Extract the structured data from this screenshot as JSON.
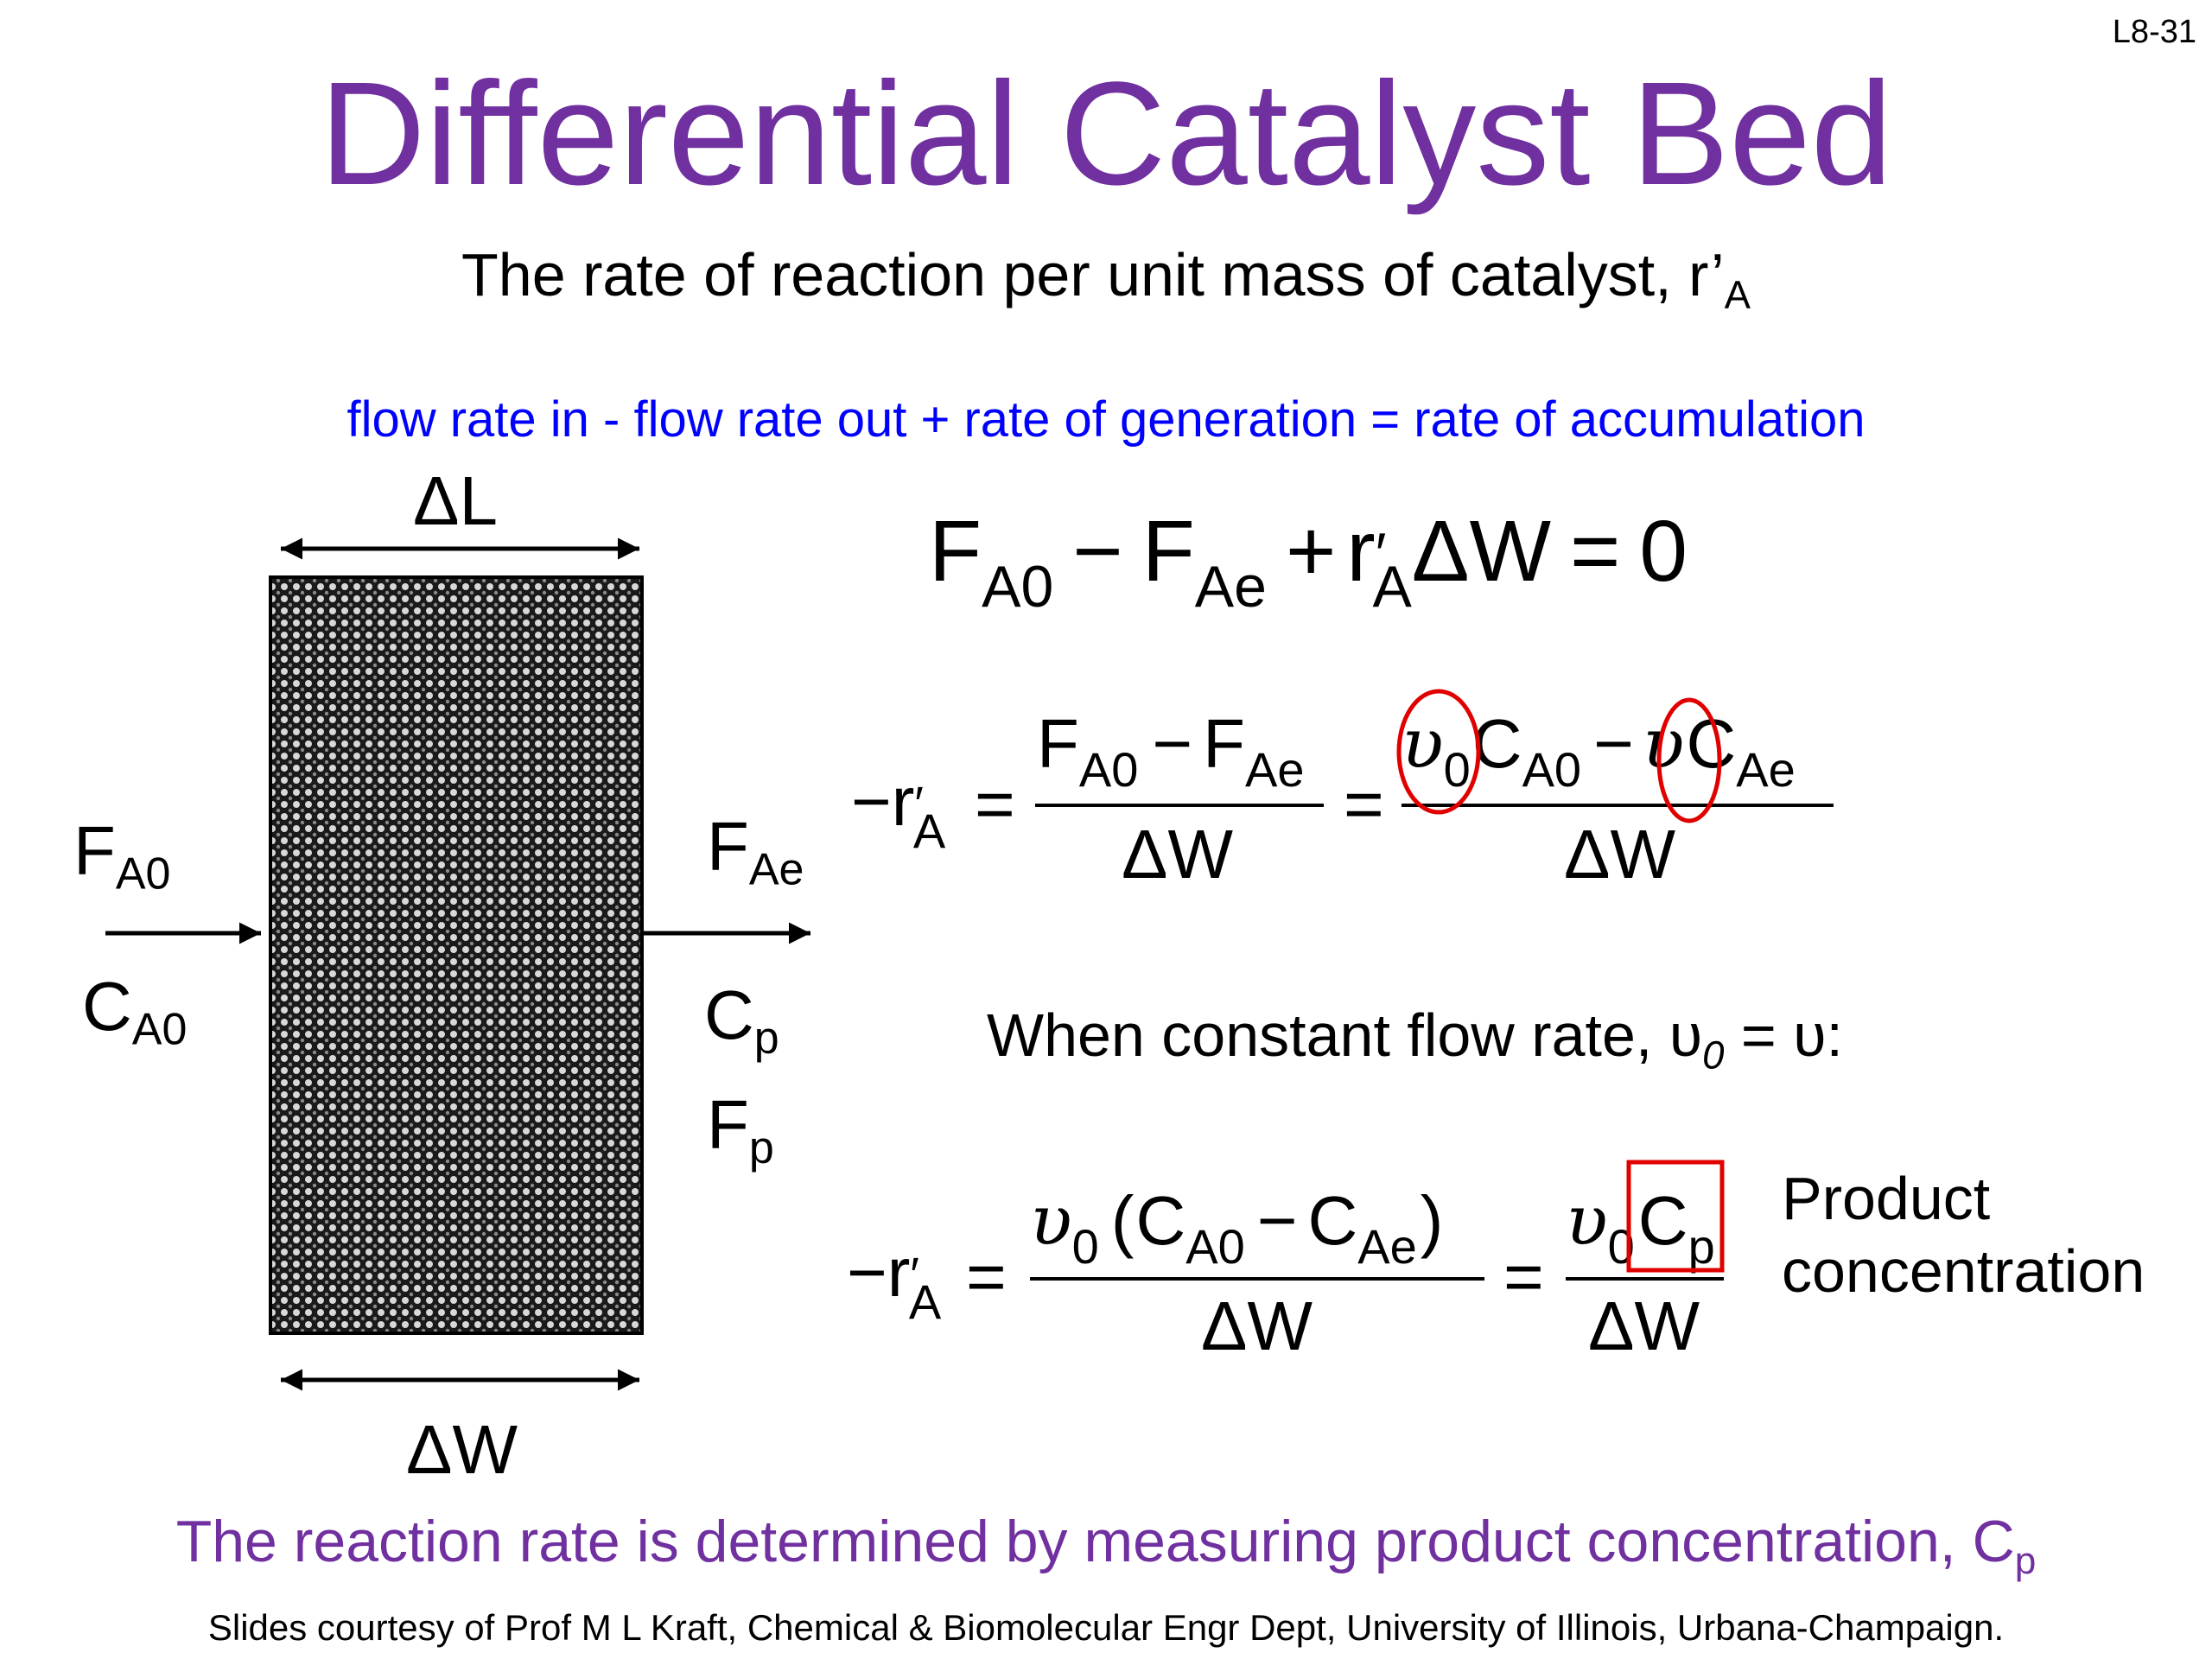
{
  "slide": {
    "number": "L8-31",
    "title": "Differential Catalyst Bed",
    "subtitle": "The rate of reaction per unit mass of catalyst, r’",
    "subtitle_sub": "A",
    "balance_text": "flow rate in - flow rate out + rate of generation = rate of accumulation",
    "when_text": "When constant flow rate, υ",
    "when_sub": "0",
    "when_tail": " = υ:",
    "product_label_line1": "Product",
    "product_label_line2": "concentration",
    "conclusion": "The reaction rate is determined by measuring product concentration, C",
    "conclusion_sub": "p",
    "credit": "Slides courtesy of Prof M L Kraft, Chemical & Biomolecular Engr Dept, University of Illinois, Urbana-Champaign."
  },
  "diagram": {
    "delta_L": "ΔL",
    "delta_W": "ΔW",
    "inlet_F": "F",
    "inlet_F_sub": "A0",
    "inlet_C": "C",
    "inlet_C_sub": "A0",
    "outlet_F": "F",
    "outlet_F_sub": "Ae",
    "outlet_C": "C",
    "outlet_C_sub": "p",
    "outlet_Fp": "F",
    "outlet_Fp_sub": "p"
  },
  "equations": {
    "eq1": {
      "F": "F",
      "A0": "A0",
      "minus": "−",
      "Ae": "Ae",
      "plus": "+",
      "r": "r",
      "prime": "′",
      "A": "A",
      "dW": "ΔW",
      "equals": "=",
      "zero": "0"
    },
    "eq2": {
      "lhs": "−r",
      "prime": "′",
      "A": "A",
      "equals": "=",
      "num1_F": "F",
      "num1_A0": "A0",
      "minus": "−",
      "num1_Ae": "Ae",
      "den": "ΔW",
      "nu": "υ",
      "nu_sub": "0",
      "C": "C",
      "C_A0": "A0",
      "C_Ae": "Ae"
    },
    "eq3": {
      "lhs": "−r",
      "prime": "′",
      "A": "A",
      "equals": "=",
      "nu": "υ",
      "nu_sub": "0",
      "lparen": "(",
      "rparen": ")",
      "C": "C",
      "A0": "A0",
      "minus": "−",
      "Ae": "Ae",
      "den": "ΔW",
      "Cp_C": "C",
      "Cp_p": "p"
    }
  },
  "colors": {
    "title": "#7030a0",
    "balance": "#0000ff",
    "highlight": "#e00000"
  }
}
